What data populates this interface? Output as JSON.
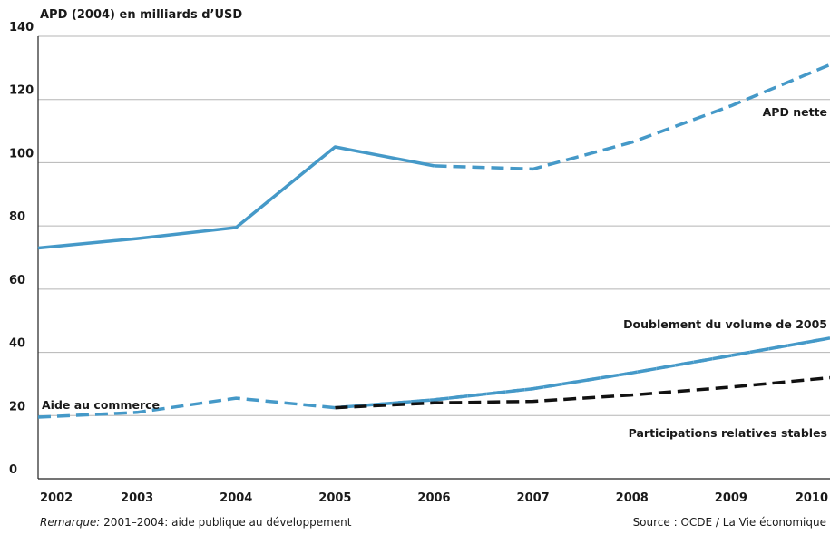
{
  "footer": {
    "note_label": "Remarque:",
    "note_text": " 2001–2004: aide publique au développement",
    "source": "Source : OCDE / La Vie économique"
  },
  "chart_data": {
    "type": "line",
    "ylabel": "APD (2004) en milliards d’USD",
    "xlabel": "",
    "x": [
      "2002",
      "2003",
      "2004",
      "2005",
      "2006",
      "2007",
      "2008",
      "2009",
      "2010"
    ],
    "yticks": [
      0,
      20,
      40,
      60,
      80,
      100,
      120,
      140
    ],
    "ylim": [
      0,
      140
    ],
    "grid": true,
    "series": [
      {
        "name": "APD nette",
        "color": "#4599c8",
        "values": [
          73,
          76,
          79.5,
          105,
          99,
          98,
          106.5,
          118,
          131
        ],
        "solid_until_index": 4
      },
      {
        "name": "Aide au commerce",
        "color": "#4599c8",
        "values": [
          19.5,
          21,
          25.5,
          22.5,
          25,
          28.5,
          33.5,
          39,
          44.5
        ],
        "solid_until_index": 0
      },
      {
        "name": "Doublement du volume de 2005",
        "color": "#4599c8",
        "values": [
          null,
          null,
          null,
          22.5,
          25,
          28.5,
          33.5,
          39,
          44.5
        ],
        "solid_until_index": 0
      },
      {
        "name": "Participations relatives stables",
        "color": "#111111",
        "values": [
          null,
          null,
          null,
          22.5,
          24,
          24.5,
          26.5,
          29,
          32
        ],
        "solid_until_index": 0
      }
    ]
  }
}
